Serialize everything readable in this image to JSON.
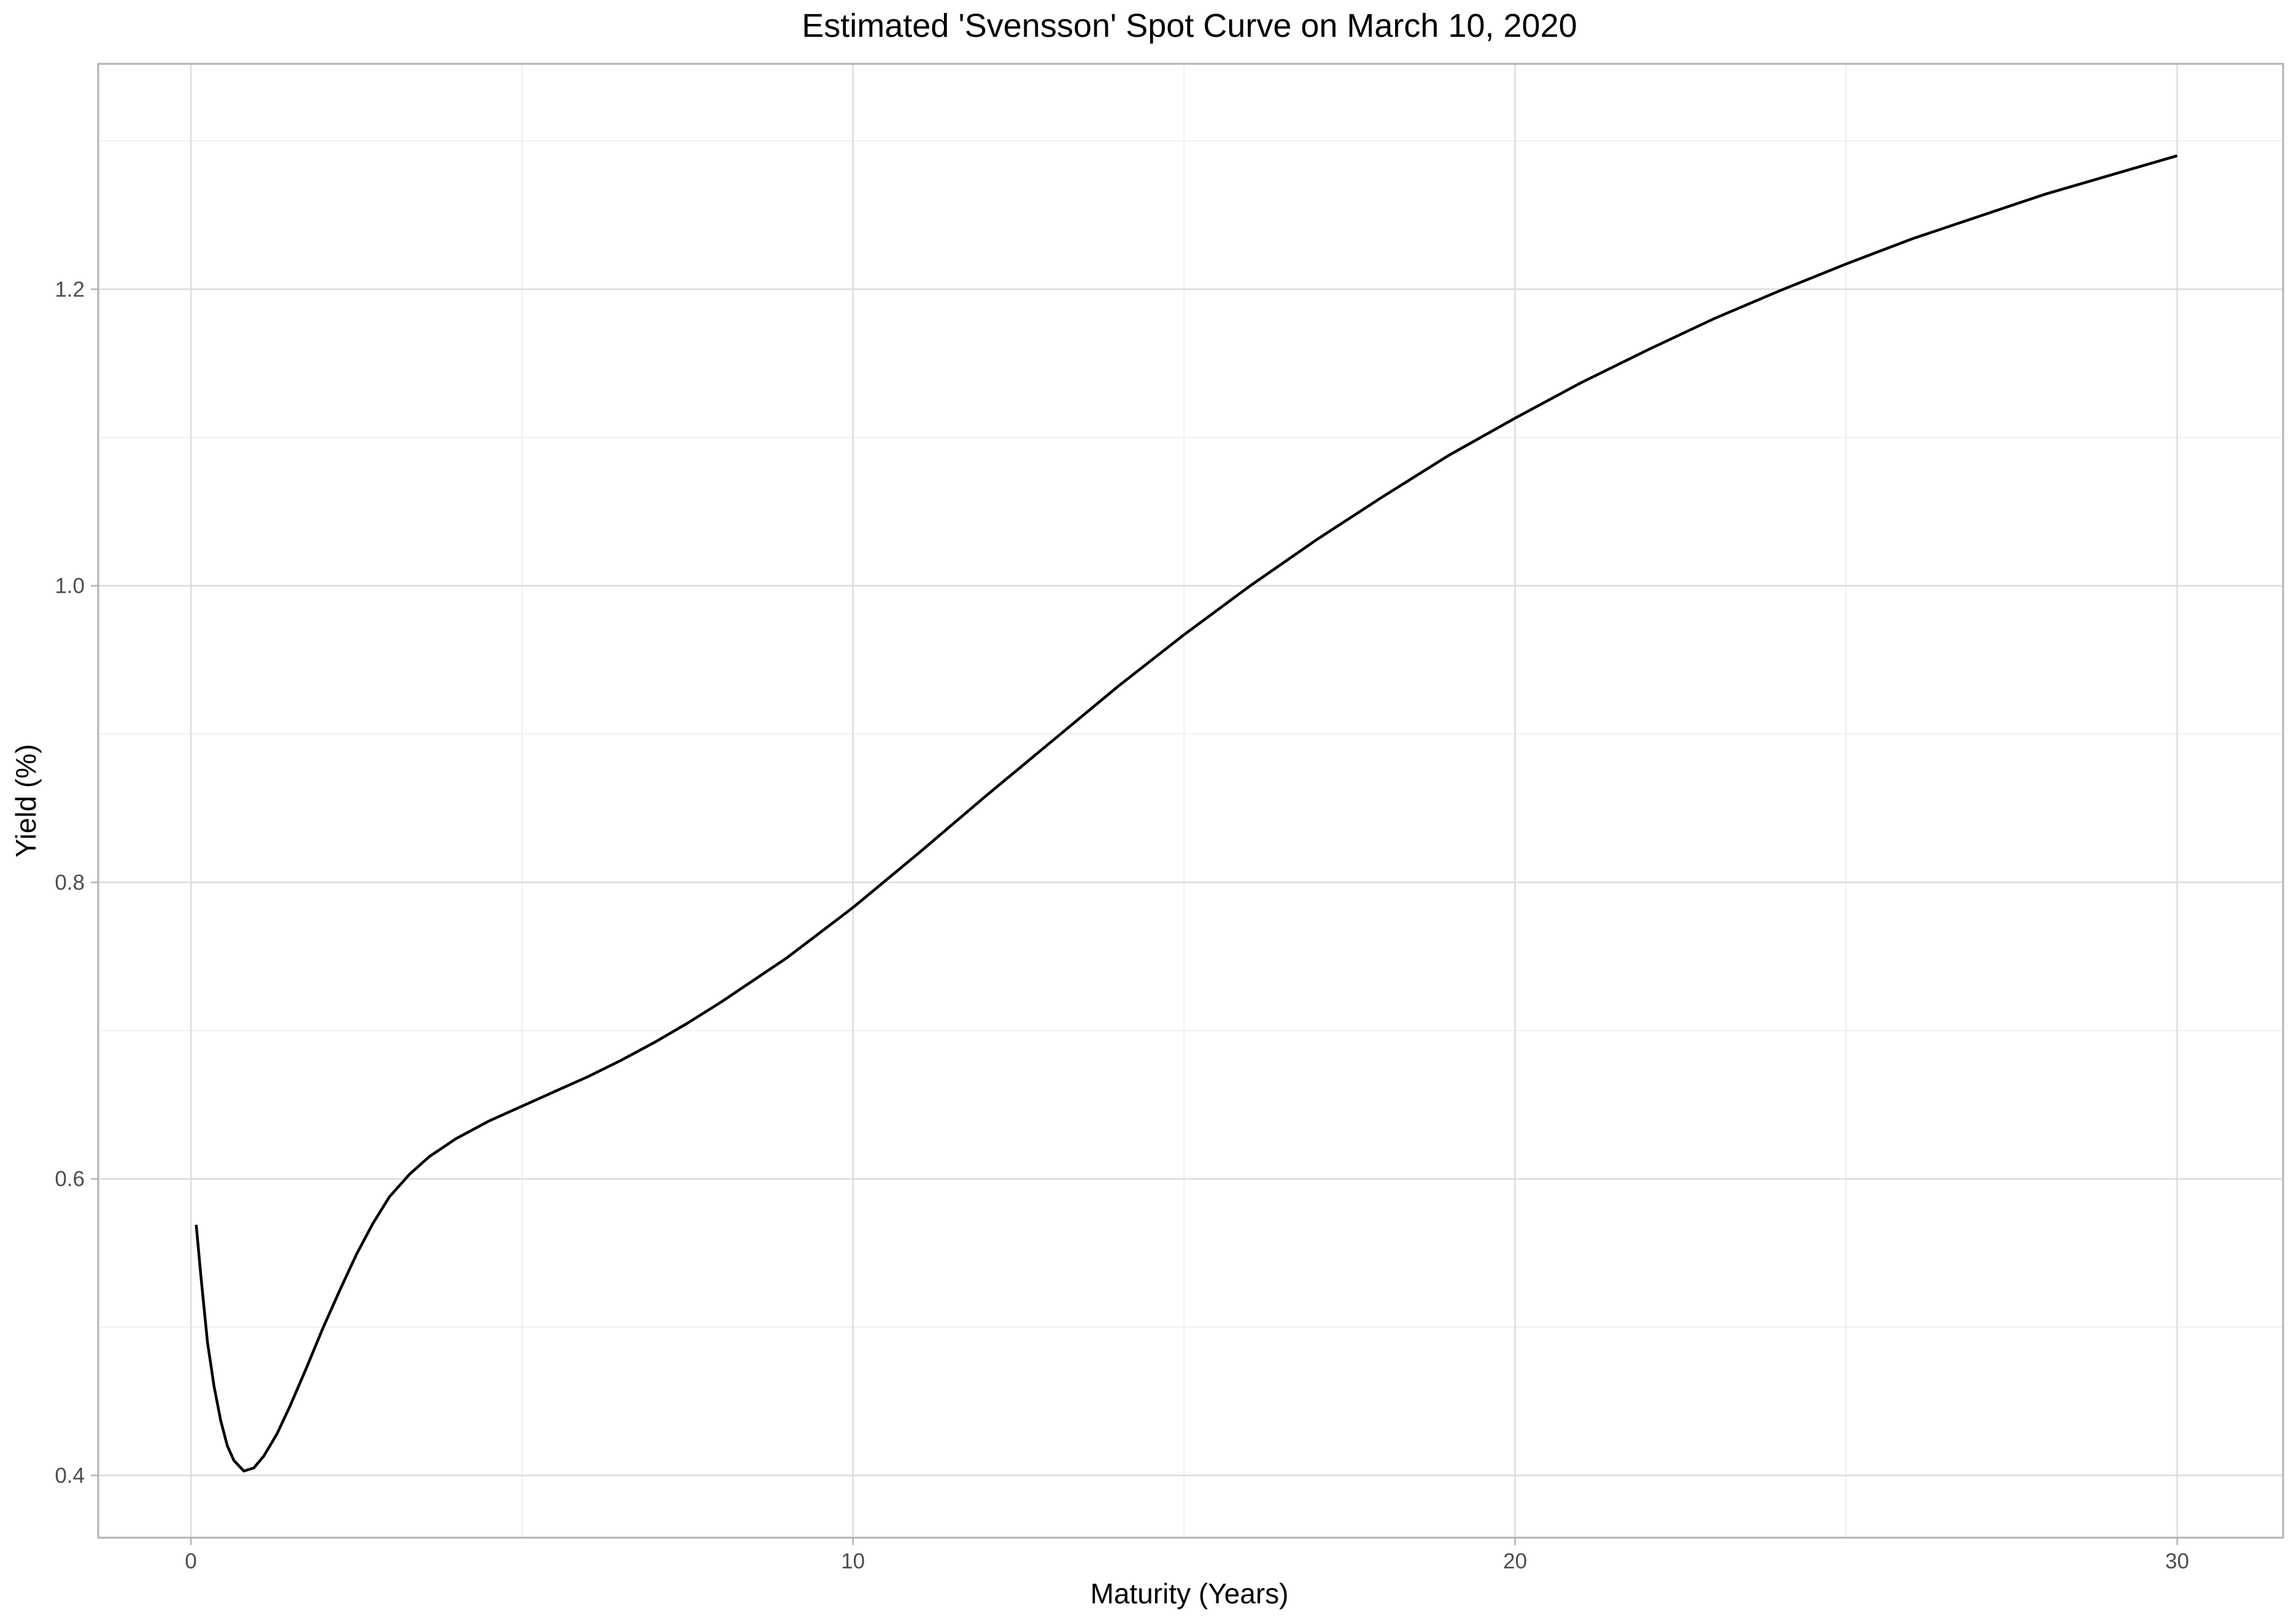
{
  "chart_data": {
    "type": "line",
    "title": "Estimated 'Svensson' Spot Curve on March 10, 2020",
    "xlabel": "Maturity (Years)",
    "ylabel": "Yield (%)",
    "xlim": [
      -1.4,
      31.6
    ],
    "ylim": [
      0.358,
      1.352
    ],
    "x_ticks": [
      0,
      10,
      20,
      30
    ],
    "x_tick_labels": [
      "0",
      "10",
      "20",
      "30"
    ],
    "y_ticks": [
      0.4,
      0.6,
      0.8,
      1.0,
      1.2
    ],
    "y_tick_labels": [
      "0.4",
      "0.6",
      "0.8",
      "1.0",
      "1.2"
    ],
    "grid": true,
    "legend": false,
    "colors": {
      "line": "#000000",
      "grid": "#dcdcdc",
      "panel_border": "#b3b3b3",
      "background": "#ffffff"
    },
    "series": [
      {
        "x": [
          0.08,
          0.15,
          0.25,
          0.35,
          0.45,
          0.55,
          0.65,
          0.8,
          0.95,
          1.1,
          1.3,
          1.5,
          1.75,
          2.0,
          2.25,
          2.5,
          2.75,
          3.0,
          3.3,
          3.6,
          4.0,
          4.5,
          5.0,
          5.5,
          6.0,
          6.5,
          7.0,
          7.5,
          8.0,
          8.5,
          9.0,
          9.5,
          10.0,
          11.0,
          12.0,
          13.0,
          14.0,
          15.0,
          16.0,
          17.0,
          18.0,
          19.0,
          20.0,
          21.0,
          22.0,
          23.0,
          24.0,
          25.0,
          26.0,
          27.0,
          28.0,
          29.0,
          30.0
        ],
        "y": [
          0.569,
          0.535,
          0.49,
          0.46,
          0.437,
          0.42,
          0.41,
          0.403,
          0.405,
          0.413,
          0.428,
          0.447,
          0.473,
          0.5,
          0.525,
          0.549,
          0.57,
          0.588,
          0.603,
          0.615,
          0.627,
          0.639,
          0.649,
          0.659,
          0.669,
          0.68,
          0.692,
          0.705,
          0.719,
          0.734,
          0.749,
          0.766,
          0.783,
          0.82,
          0.858,
          0.895,
          0.932,
          0.967,
          1.0,
          1.031,
          1.06,
          1.088,
          1.113,
          1.137,
          1.159,
          1.18,
          1.199,
          1.217,
          1.234,
          1.249,
          1.264,
          1.277,
          1.29
        ]
      }
    ]
  }
}
